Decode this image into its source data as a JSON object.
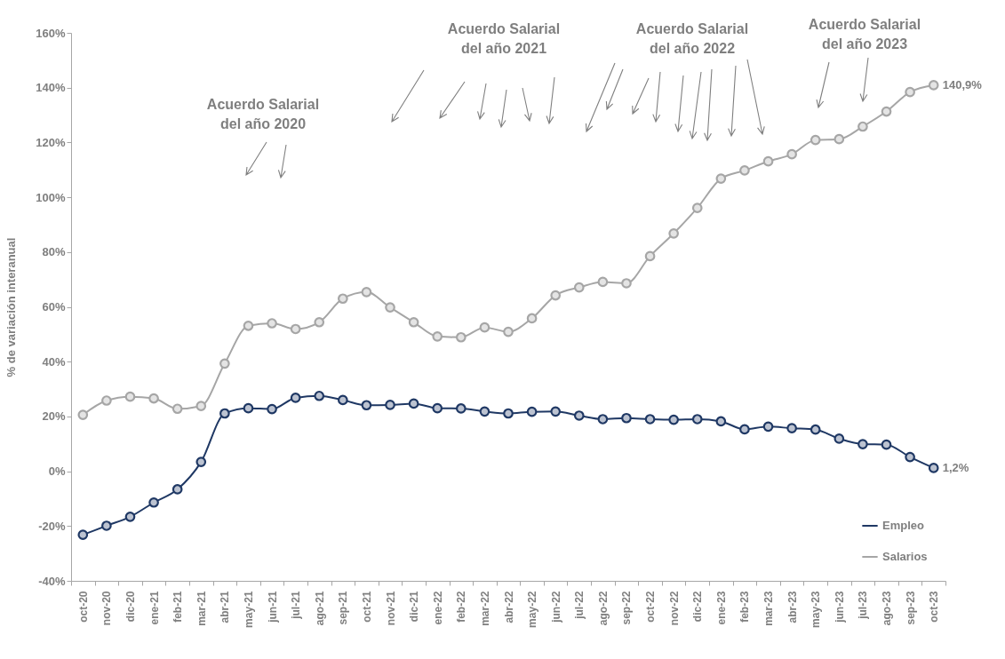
{
  "chart_data": {
    "type": "line",
    "ylabel": "% de variación interanual",
    "categories": [
      "oct-20",
      "nov-20",
      "dic-20",
      "ene-21",
      "feb-21",
      "mar-21",
      "abr-21",
      "may-21",
      "jun-21",
      "jul-21",
      "ago-21",
      "sep-21",
      "oct-21",
      "nov-21",
      "dic-21",
      "ene-22",
      "feb-22",
      "mar-22",
      "abr-22",
      "may-22",
      "jun-22",
      "jul-22",
      "ago-22",
      "sep-22",
      "oct-22",
      "nov-22",
      "dic-22",
      "ene-23",
      "feb-23",
      "mar-23",
      "abr-23",
      "may-23",
      "jun-23",
      "jul-23",
      "ago-23",
      "sep-23",
      "oct-23"
    ],
    "series": [
      {
        "name": "Empleo",
        "color": "#1f3864",
        "values": [
          -23.2,
          -19.9,
          -16.6,
          -11.4,
          -6.6,
          3.4,
          21.1,
          23.0,
          22.7,
          26.8,
          27.5,
          26.0,
          24.1,
          24.2,
          24.7,
          23.0,
          22.9,
          21.8,
          21.1,
          21.7,
          21.8,
          20.3,
          19.0,
          19.4,
          19.0,
          18.8,
          19.0,
          18.2,
          15.3,
          16.3,
          15.7,
          15.2,
          11.9,
          9.9,
          9.7,
          5.2,
          1.2
        ],
        "value_labels": [
          null,
          null,
          null,
          null,
          null,
          null,
          null,
          null,
          null,
          null,
          null,
          null,
          null,
          null,
          null,
          null,
          null,
          null,
          null,
          null,
          null,
          null,
          null,
          null,
          null,
          null,
          null,
          null,
          null,
          null,
          null,
          null,
          null,
          null,
          null,
          null,
          "1,2%"
        ]
      },
      {
        "name": "Salarios",
        "color": "#a6a6a6",
        "values": [
          20.6,
          25.8,
          27.2,
          26.6,
          22.8,
          23.8,
          39.3,
          53.1,
          54.0,
          51.9,
          54.4,
          63.0,
          65.4,
          59.8,
          54.4,
          49.2,
          48.9,
          52.5,
          50.9,
          55.8,
          64.2,
          67.1,
          69.1,
          68.6,
          78.5,
          86.8,
          96.1,
          106.8,
          109.8,
          113.1,
          115.7,
          120.9,
          121.2,
          125.8,
          131.3,
          138.4,
          140.9
        ],
        "value_labels": [
          null,
          null,
          null,
          null,
          null,
          null,
          null,
          null,
          null,
          null,
          null,
          null,
          null,
          null,
          null,
          null,
          null,
          null,
          null,
          null,
          null,
          null,
          null,
          null,
          null,
          null,
          null,
          null,
          null,
          null,
          null,
          null,
          null,
          null,
          null,
          null,
          "140,9%"
        ]
      }
    ],
    "ylim": [
      -40,
      160
    ],
    "yticks": [
      {
        "value": -40,
        "label": "-40%"
      },
      {
        "value": -20,
        "label": "-20%"
      },
      {
        "value": 0,
        "label": "0%"
      },
      {
        "value": 20,
        "label": "20%"
      },
      {
        "value": 40,
        "label": "40%"
      },
      {
        "value": 60,
        "label": "60%"
      },
      {
        "value": 80,
        "label": "80%"
      },
      {
        "value": 100,
        "label": "100%"
      },
      {
        "value": 120,
        "label": "120%"
      },
      {
        "value": 140,
        "label": "140%"
      },
      {
        "value": 160,
        "label": "160%"
      }
    ],
    "annotations": [
      "Acuerdo Salarial\ndel año 2020",
      "Acuerdo Salarial\ndel año 2021",
      "Acuerdo Salarial\ndel año 2022",
      "Acuerdo Salarial\ndel año 2023"
    ],
    "marker": "circle",
    "line_style": "solid",
    "legend": "bottom right"
  }
}
